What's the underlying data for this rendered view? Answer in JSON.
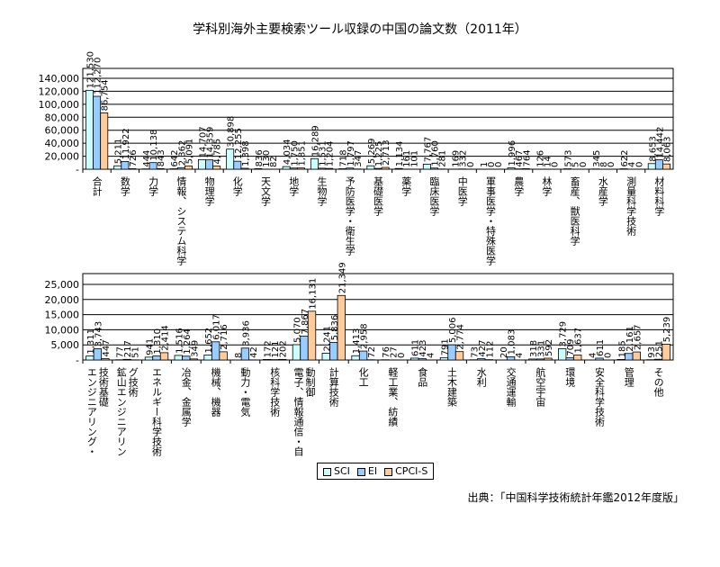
{
  "title": "学科別海外主要検索ツール収録の中国の論文数（2011年）",
  "source": "出典：「中国科学技術統計年鑑2012年度版」",
  "colors": {
    "SCI": "#ccffff",
    "EI": "#99ccff",
    "CPCI-S": "#ffcc99"
  },
  "chart_data": [
    {
      "type": "bar",
      "title": "学科別海外主要検索ツール収録の中国の論文数（2011年）",
      "ylim": [
        0,
        140000
      ],
      "yticks": [
        0,
        20000,
        40000,
        60000,
        80000,
        100000,
        120000,
        140000
      ],
      "series_names": [
        "SCI",
        "EI",
        "CPCI-S"
      ],
      "categories": [
        "合計",
        "数学",
        "力学",
        "情報、システム科学",
        "物理学",
        "化学",
        "天文学",
        "地学",
        "生物学",
        "予防医学・衛生学",
        "基礎医学",
        "薬学",
        "臨床医学",
        "中医学",
        "軍事医学・特殊医学",
        "農学",
        "林学",
        "畜産、獣医科学",
        "水産学",
        "測量科学技術",
        "材料科学"
      ],
      "series": [
        {
          "name": "SCI",
          "values": [
            121530,
            5211,
            444,
            642,
            14707,
            30898,
            836,
            4034,
            16289,
            718,
            5269,
            1134,
            7767,
            169,
            1,
            1996,
            126,
            573,
            345,
            622,
            8653
          ]
        },
        {
          "name": "EI",
          "values": [
            112270,
            11922,
            10138,
            2362,
            14359,
            12255,
            130,
            1750,
            1531,
            1797,
            1225,
            161,
            1760,
            332,
            0,
            467,
            14,
            5,
            8,
            4,
            14442
          ]
        },
        {
          "name": "CPCI-S",
          "values": [
            86754,
            726,
            843,
            5091,
            4785,
            1398,
            82,
            1851,
            1204,
            347,
            2713,
            101,
            281,
            0,
            0,
            764,
            0,
            0,
            0,
            0,
            8063
          ]
        }
      ]
    },
    {
      "type": "bar",
      "ylim": [
        0,
        25000
      ],
      "yticks": [
        0,
        5000,
        10000,
        15000,
        20000,
        25000
      ],
      "series_names": [
        "SCI",
        "EI",
        "CPCI-S"
      ],
      "categories": [
        "エンジニアリング・技術基礎",
        "鉱山エンジニアリング技術",
        "エネルギー科学技術",
        "冶金、金属学",
        "機械、機器",
        "動力・電気",
        "核科学技術",
        "電子、情報通信・自動制御",
        "計算技術",
        "化工",
        "軽工業、紡績",
        "食品",
        "土木建築",
        "水利",
        "交通運輸",
        "航空宇宙",
        "環境",
        "安全科学技術",
        "管理",
        "その他"
      ],
      "series": [
        {
          "name": "SCI",
          "values": [
            1311,
            77,
            941,
            1516,
            1652,
            8,
            172,
            5070,
            2241,
            1413,
            76,
            611,
            791,
            73,
            20,
            318,
            3729,
            4,
            185,
            93
          ]
        },
        {
          "name": "EI",
          "values": [
            3743,
            217,
            1310,
            1264,
            6017,
            3936,
            121,
            7867,
            5836,
            2958,
            27,
            423,
            5006,
            427,
            1083,
            331,
            709,
            611,
            2161,
            251
          ]
        },
        {
          "name": "CPCI-S",
          "values": [
            447,
            51,
            2414,
            349,
            2716,
            42,
            202,
            16131,
            21349,
            72,
            0,
            4,
            2774,
            112,
            4,
            592,
            1637,
            0,
            2657,
            5239
          ]
        }
      ]
    }
  ]
}
